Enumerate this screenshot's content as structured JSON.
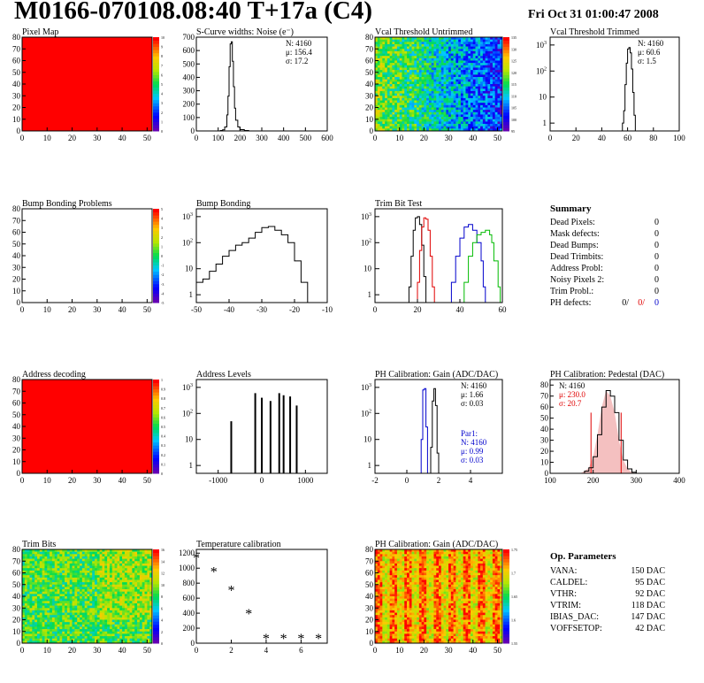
{
  "header": {
    "title": "M0166-070108.08:40 T+17a (C4)",
    "date": "Fri Oct 31 01:00:47 2008"
  },
  "colors": {
    "black": "#000000",
    "red": "#e00000",
    "blue": "#0000cc",
    "green": "#00bb00",
    "map_red": "#ff0000"
  },
  "chart_data": [
    {
      "id": "pixel_map",
      "type": "heatmap",
      "title": "Pixel Map",
      "xlim": [
        0,
        52
      ],
      "ylim": [
        0,
        80
      ],
      "xticks": [
        0,
        10,
        20,
        30,
        40,
        50
      ],
      "yticks": [
        0,
        10,
        20,
        30,
        40,
        50,
        60,
        70,
        80
      ],
      "fill": "uniform-max",
      "colorbar": {
        "min": 0,
        "max": 10,
        "ticks": [
          "0",
          "1",
          "2",
          "3",
          "4",
          "5",
          "6",
          "7",
          "8",
          "9",
          "10"
        ]
      }
    },
    {
      "id": "scurve_noise",
      "type": "line",
      "title": "S-Curve widths: Noise (e⁻)",
      "xlim": [
        0,
        600
      ],
      "ylim": [
        0,
        700
      ],
      "xticks": [
        0,
        100,
        200,
        300,
        400,
        500,
        600
      ],
      "yticks": [
        0,
        100,
        200,
        300,
        400,
        500,
        600,
        700
      ],
      "stats": [
        "N: 4160",
        "μ: 156.4",
        "σ: 17.2"
      ],
      "series": [
        {
          "color": "black",
          "points": [
            [
              90,
              0
            ],
            [
              110,
              3
            ],
            [
              120,
              8
            ],
            [
              130,
              30
            ],
            [
              140,
              120
            ],
            [
              145,
              260
            ],
            [
              150,
              480
            ],
            [
              155,
              650
            ],
            [
              160,
              665
            ],
            [
              165,
              520
            ],
            [
              170,
              330
            ],
            [
              175,
              170
            ],
            [
              180,
              80
            ],
            [
              190,
              30
            ],
            [
              200,
              10
            ],
            [
              220,
              3
            ],
            [
              240,
              0
            ]
          ]
        }
      ]
    },
    {
      "id": "vcal_untrimmed",
      "type": "heatmap",
      "title": "Vcal Threshold Untrimmed",
      "xlim": [
        0,
        52
      ],
      "ylim": [
        0,
        80
      ],
      "xticks": [
        0,
        10,
        20,
        30,
        40,
        50
      ],
      "yticks": [
        0,
        10,
        20,
        30,
        40,
        50,
        60,
        70,
        80
      ],
      "fill": "noise-gradient",
      "colorbar": {
        "min": 95,
        "max": 135,
        "ticks": [
          "95",
          "100",
          "105",
          "110",
          "115",
          "120",
          "125",
          "130",
          "135"
        ]
      }
    },
    {
      "id": "vcal_trimmed",
      "type": "line",
      "title": "Vcal Threshold Trimmed",
      "xlim": [
        0,
        100
      ],
      "ylog": true,
      "ylim": [
        0.5,
        2000
      ],
      "xticks": [
        0,
        20,
        40,
        60,
        80,
        100
      ],
      "ylogticks": [
        1,
        10,
        100,
        1000
      ],
      "stats": [
        "N: 4160",
        "μ: 60.6",
        "σ: 1.5"
      ],
      "series": [
        {
          "color": "black",
          "points": [
            [
              55,
              0.5
            ],
            [
              56,
              1
            ],
            [
              57,
              3
            ],
            [
              58,
              30
            ],
            [
              59,
              200
            ],
            [
              60,
              700
            ],
            [
              61,
              800
            ],
            [
              62,
              500
            ],
            [
              63,
              120
            ],
            [
              64,
              15
            ],
            [
              65,
              2
            ],
            [
              66,
              0.5
            ]
          ]
        }
      ]
    },
    {
      "id": "bump_problems",
      "type": "heatmap",
      "title": "Bump Bonding Problems",
      "xlim": [
        0,
        52
      ],
      "ylim": [
        0,
        80
      ],
      "xticks": [
        0,
        10,
        20,
        30,
        40,
        50
      ],
      "yticks": [
        0,
        10,
        20,
        30,
        40,
        50,
        60,
        70,
        80
      ],
      "fill": "empty",
      "colorbar": {
        "min": -5,
        "max": 5,
        "ticks": [
          "-5",
          "-4",
          "-3",
          "-2",
          "-1",
          "0",
          "1",
          "2",
          "3",
          "4",
          "5"
        ]
      }
    },
    {
      "id": "bump_bonding",
      "type": "line",
      "title": "Bump Bonding",
      "xlim": [
        -50,
        -10
      ],
      "ylog": true,
      "ylim": [
        0.5,
        2000
      ],
      "xticks": [
        -50,
        -40,
        -30,
        -20,
        -10
      ],
      "ylogticks": [
        1,
        10,
        100,
        1000
      ],
      "series": [
        {
          "color": "black",
          "points": [
            [
              -50,
              3
            ],
            [
              -48,
              4
            ],
            [
              -46,
              8
            ],
            [
              -44,
              15
            ],
            [
              -42,
              30
            ],
            [
              -40,
              50
            ],
            [
              -38,
              80
            ],
            [
              -36,
              100
            ],
            [
              -34,
              150
            ],
            [
              -32,
              250
            ],
            [
              -30,
              380
            ],
            [
              -28,
              420
            ],
            [
              -26,
              300
            ],
            [
              -24,
              200
            ],
            [
              -22,
              100
            ],
            [
              -20,
              20
            ],
            [
              -18,
              3
            ],
            [
              -16,
              0.5
            ]
          ]
        }
      ]
    },
    {
      "id": "trim_bit_test",
      "type": "line",
      "title": "Trim Bit Test",
      "xlim": [
        0,
        60
      ],
      "ylog": true,
      "ylim": [
        0.5,
        2000
      ],
      "xticks": [
        0,
        20,
        40,
        60
      ],
      "ylogticks": [
        1,
        10,
        100,
        1000
      ],
      "series": [
        {
          "color": "black",
          "points": [
            [
              15,
              0.5
            ],
            [
              16,
              2
            ],
            [
              17,
              30
            ],
            [
              18,
              300
            ],
            [
              19,
              900
            ],
            [
              20,
              1000
            ],
            [
              21,
              500
            ],
            [
              22,
              80
            ],
            [
              23,
              5
            ],
            [
              24,
              0.5
            ]
          ]
        },
        {
          "color": "red",
          "points": [
            [
              19,
              0.5
            ],
            [
              20,
              3
            ],
            [
              21,
              50
            ],
            [
              22,
              400
            ],
            [
              23,
              900
            ],
            [
              24,
              800
            ],
            [
              25,
              300
            ],
            [
              26,
              30
            ],
            [
              27,
              2
            ],
            [
              28,
              0.5
            ]
          ]
        },
        {
          "color": "blue",
          "points": [
            [
              34,
              0.5
            ],
            [
              36,
              3
            ],
            [
              38,
              30
            ],
            [
              40,
              150
            ],
            [
              42,
              400
            ],
            [
              44,
              500
            ],
            [
              46,
              300
            ],
            [
              48,
              100
            ],
            [
              50,
              20
            ],
            [
              51,
              2
            ],
            [
              52,
              0.5
            ]
          ]
        },
        {
          "color": "green",
          "points": [
            [
              40,
              0.5
            ],
            [
              42,
              3
            ],
            [
              44,
              30
            ],
            [
              46,
              100
            ],
            [
              48,
              200
            ],
            [
              50,
              250
            ],
            [
              52,
              300
            ],
            [
              54,
              200
            ],
            [
              55,
              100
            ],
            [
              56,
              20
            ],
            [
              58,
              2
            ],
            [
              59,
              0.5
            ]
          ]
        }
      ]
    },
    {
      "id": "address_decoding",
      "type": "heatmap",
      "title": "Address decoding",
      "xlim": [
        0,
        52
      ],
      "ylim": [
        0,
        80
      ],
      "xticks": [
        0,
        10,
        20,
        30,
        40,
        50
      ],
      "yticks": [
        0,
        10,
        20,
        30,
        40,
        50,
        60,
        70,
        80
      ],
      "fill": "uniform-max",
      "colorbar": {
        "min": 0,
        "max": 1,
        "ticks": [
          "0",
          "0.1",
          "0.2",
          "0.3",
          "0.4",
          "0.5",
          "0.6",
          "0.7",
          "0.8",
          "0.9",
          "1"
        ]
      }
    },
    {
      "id": "address_levels",
      "type": "bar",
      "title": "Address Levels",
      "xlim": [
        -1500,
        1500
      ],
      "ylog": true,
      "ylim": [
        0.5,
        2000
      ],
      "xticks": [
        -1000,
        0,
        1000
      ],
      "ylogticks": [
        1,
        10,
        100,
        1000
      ],
      "spikes": [
        [
          -700,
          50
        ],
        [
          -150,
          600
        ],
        [
          0,
          400
        ],
        [
          200,
          300
        ],
        [
          400,
          600
        ],
        [
          500,
          500
        ],
        [
          650,
          450
        ],
        [
          800,
          200
        ]
      ]
    },
    {
      "id": "ph_gain",
      "type": "line",
      "title": "PH Calibration: Gain (ADC/DAC)",
      "xlim": [
        -2,
        6
      ],
      "ylog": true,
      "ylim": [
        0.5,
        2000
      ],
      "xticks": [
        -2,
        0,
        2,
        4
      ],
      "ylogticks": [
        1,
        10,
        100,
        1000
      ],
      "stats": [
        "N: 4160",
        "μ: 1.66",
        "σ: 0.03"
      ],
      "par_stats": [
        "Par1:",
        "N: 4160",
        "μ: 0.99",
        "σ: 0.03"
      ],
      "series": [
        {
          "color": "black",
          "points": [
            [
              1.4,
              0.5
            ],
            [
              1.5,
              5
            ],
            [
              1.6,
              300
            ],
            [
              1.7,
              900
            ],
            [
              1.8,
              200
            ],
            [
              1.9,
              3
            ],
            [
              2.0,
              0.5
            ]
          ]
        },
        {
          "color": "blue",
          "points": [
            [
              0.8,
              0.5
            ],
            [
              0.9,
              10
            ],
            [
              1.0,
              800
            ],
            [
              1.1,
              900
            ],
            [
              1.2,
              30
            ],
            [
              1.3,
              0.5
            ]
          ]
        }
      ]
    },
    {
      "id": "ph_pedestal",
      "type": "line",
      "title": "PH Calibration: Pedestal (DAC)",
      "xlim": [
        100,
        400
      ],
      "ylim": [
        0,
        85
      ],
      "xticks": [
        100,
        200,
        300,
        400
      ],
      "yticks": [
        0,
        10,
        20,
        30,
        40,
        50,
        60,
        70,
        80
      ],
      "stats": [
        "N: 4160"
      ],
      "red_stats": [
        "μ: 230.0",
        "σ: 20.7"
      ],
      "fit_color": "red",
      "series": [
        {
          "color": "black",
          "points": [
            [
              170,
              0
            ],
            [
              180,
              2
            ],
            [
              190,
              5
            ],
            [
              200,
              15
            ],
            [
              210,
              35
            ],
            [
              220,
              60
            ],
            [
              230,
              75
            ],
            [
              240,
              70
            ],
            [
              250,
              55
            ],
            [
              260,
              30
            ],
            [
              270,
              12
            ],
            [
              280,
              4
            ],
            [
              290,
              1
            ],
            [
              300,
              0
            ]
          ]
        }
      ]
    },
    {
      "id": "trim_bits",
      "type": "heatmap",
      "title": "Trim Bits",
      "xlim": [
        0,
        52
      ],
      "ylim": [
        0,
        80
      ],
      "xticks": [
        0,
        10,
        20,
        30,
        40,
        50
      ],
      "yticks": [
        0,
        10,
        20,
        30,
        40,
        50,
        60,
        70,
        80
      ],
      "fill": "noise-mid",
      "colorbar": {
        "min": 0,
        "max": 16,
        "ticks": [
          "0",
          "2",
          "4",
          "6",
          "8",
          "10",
          "12",
          "14",
          "16"
        ]
      }
    },
    {
      "id": "temp_calibration",
      "type": "scatter",
      "title": "Temperature calibration",
      "xlim": [
        0,
        7.5
      ],
      "ylim": [
        0,
        1250
      ],
      "xticks": [
        0,
        2,
        4,
        6
      ],
      "yticks": [
        0,
        200,
        400,
        600,
        800,
        1000,
        1200
      ],
      "points": [
        [
          0,
          1130
        ],
        [
          1,
          950
        ],
        [
          2,
          700
        ],
        [
          3,
          390
        ],
        [
          4,
          60
        ],
        [
          5,
          60
        ],
        [
          6,
          60
        ],
        [
          7,
          60
        ]
      ]
    },
    {
      "id": "ph_gain_map",
      "type": "heatmap",
      "title": "PH Calibration: Gain (ADC/DAC)",
      "xlim": [
        0,
        52
      ],
      "ylim": [
        0,
        80
      ],
      "xticks": [
        0,
        10,
        20,
        30,
        40,
        50
      ],
      "yticks": [
        0,
        10,
        20,
        30,
        40,
        50,
        60,
        70,
        80
      ],
      "fill": "noise-hot",
      "colorbar": {
        "min": 1.55,
        "max": 1.75,
        "ticks": [
          "1.55",
          "1.6",
          "1.65",
          "1.7",
          "1.75"
        ]
      }
    }
  ],
  "summary": {
    "title": "Summary",
    "rows": [
      {
        "label": "Dead Pixels:",
        "value": "0"
      },
      {
        "label": "Mask defects:",
        "value": "0"
      },
      {
        "label": "Dead Bumps:",
        "value": "0"
      },
      {
        "label": "Dead Trimbits:",
        "value": "0"
      },
      {
        "label": "Address Probl:",
        "value": "0"
      },
      {
        "label": "Noisy Pixels 2:",
        "value": "0"
      },
      {
        "label": "Trim Probl.:",
        "value": "0"
      }
    ],
    "ph_defects": {
      "label": "PH defects:",
      "v1": "0/",
      "v2": "0/",
      "v3": "0"
    }
  },
  "op_params": {
    "title": "Op. Parameters",
    "rows": [
      {
        "label": "VANA:",
        "value": "150 DAC"
      },
      {
        "label": "CALDEL:",
        "value": "95 DAC"
      },
      {
        "label": "VTHR:",
        "value": "92 DAC"
      },
      {
        "label": "VTRIM:",
        "value": "118 DAC"
      },
      {
        "label": "IBIAS_DAC:",
        "value": "147 DAC"
      },
      {
        "label": "VOFFSETOP:",
        "value": "42 DAC"
      }
    ]
  }
}
